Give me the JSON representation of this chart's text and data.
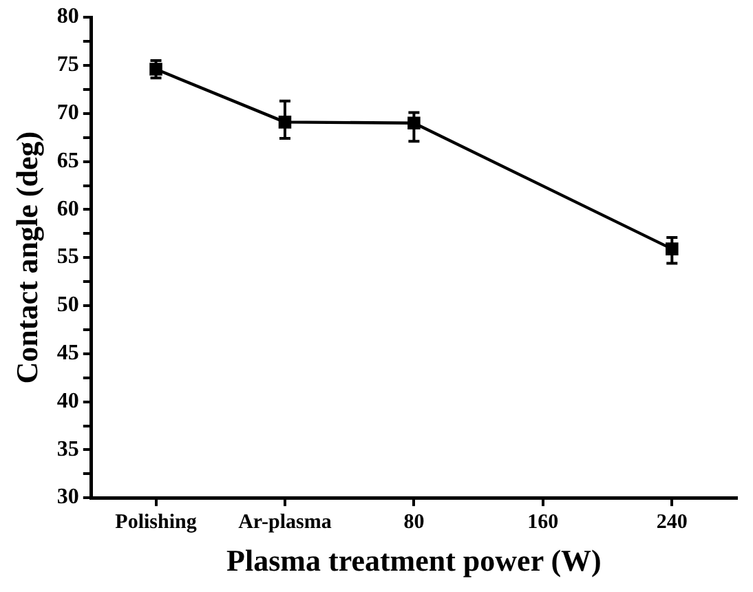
{
  "chart_data": {
    "type": "line",
    "xlabel": "Plasma treatment power (W)",
    "ylabel": "Contact angle (deg)",
    "categories": [
      "Polishing",
      "Ar-plasma",
      "80",
      "160",
      "240"
    ],
    "series": [
      {
        "color": "#000000",
        "values": [
          74.6,
          69.1,
          69.0,
          null,
          55.9
        ],
        "errors": [
          0.9,
          [
            67.4,
            71.3
          ],
          [
            67.1,
            70.1
          ],
          null,
          [
            54.4,
            57.1
          ]
        ]
      }
    ],
    "ylim": [
      30,
      80
    ],
    "yticks": [
      30,
      {
        "value": 32.5,
        "label": null
      },
      35,
      {
        "value": 37.5,
        "label": null
      },
      40,
      {
        "value": 42.5,
        "label": null
      },
      45,
      {
        "value": 47.5,
        "label": null
      },
      50,
      {
        "value": 52.5,
        "label": null
      },
      55,
      {
        "value": 57.5,
        "label": null
      },
      60,
      {
        "value": 62.5,
        "label": null
      },
      65,
      {
        "value": 67.5,
        "label": null
      },
      70,
      {
        "value": 72.5,
        "label": null
      },
      75,
      {
        "value": 77.5,
        "label": null
      },
      80
    ],
    "grid": false,
    "legend": false,
    "marker": "square",
    "line_style": "solid"
  }
}
